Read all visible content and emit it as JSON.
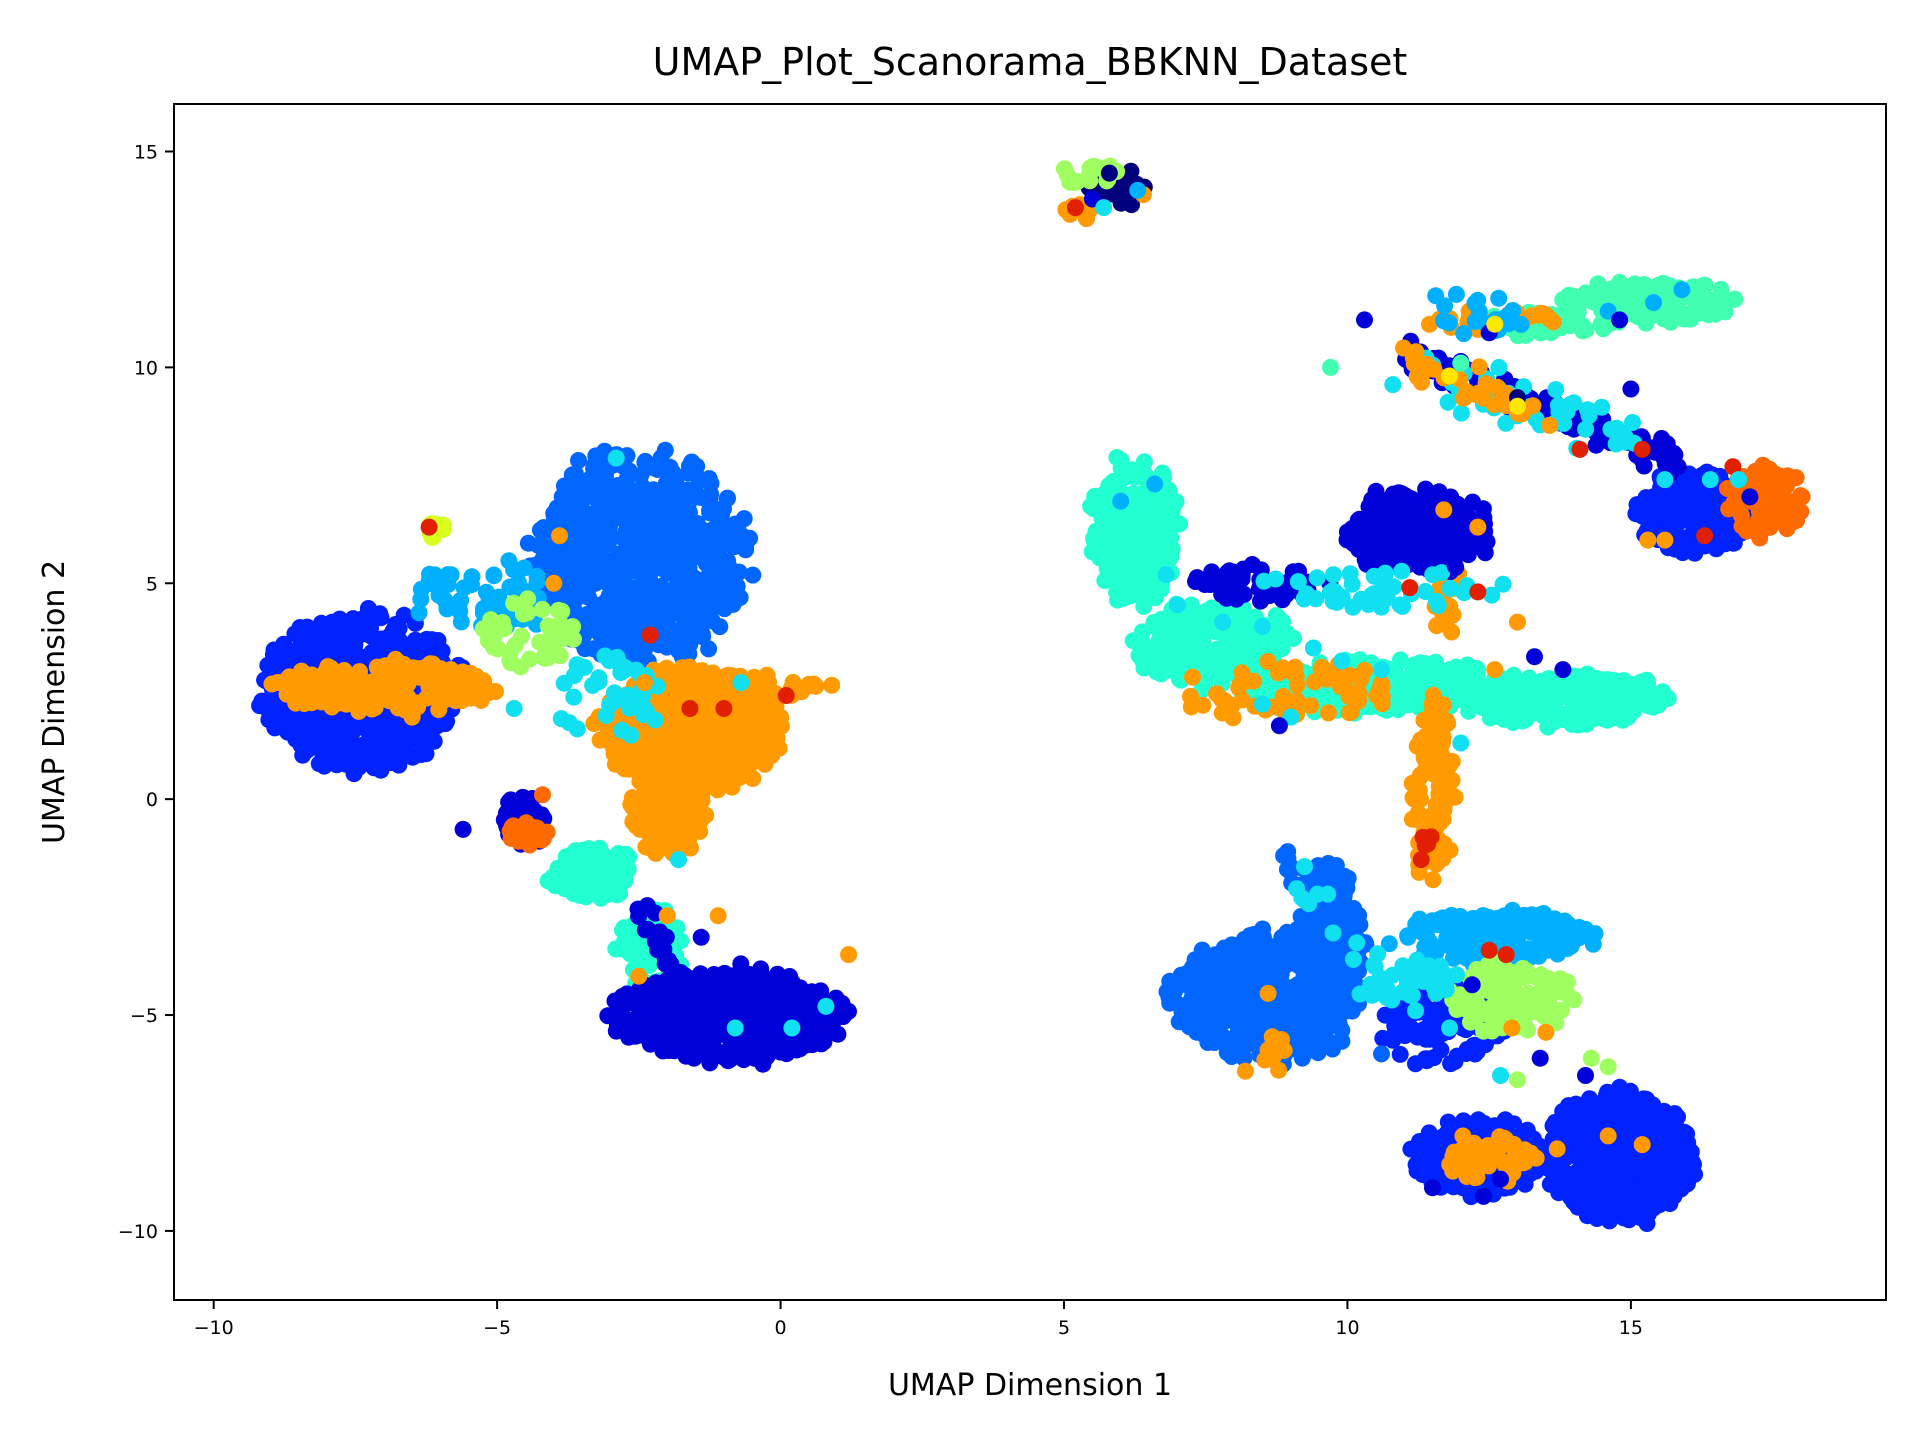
{
  "chart_data": {
    "type": "scatter",
    "title": "UMAP_Plot_Scanorama_BBKNN_Dataset",
    "xlabel": "UMAP Dimension 1",
    "ylabel": "UMAP Dimension 2",
    "xlim": [
      -10.7,
      19.5
    ],
    "ylim": [
      -11.6,
      16.1
    ],
    "xticks": [
      -10,
      -5,
      0,
      5,
      10,
      15
    ],
    "yticks": [
      -10,
      -5,
      0,
      5,
      10,
      15
    ],
    "xtick_labels": [
      "−10",
      "−5",
      "0",
      "5",
      "10",
      "15"
    ],
    "ytick_labels": [
      "−10",
      "−5",
      "0",
      "5",
      "10",
      "15"
    ],
    "grid": false,
    "legend": "none",
    "colormap": "jet",
    "colors": {
      "navy": "#00007f",
      "dark_blue": "#0000d8",
      "blue": "#0022ff",
      "azure": "#0066ff",
      "sky": "#00b0ff",
      "cyan": "#10e0f0",
      "aquamarine": "#22ffd0",
      "mint": "#40ffb0",
      "lime": "#a0ff60",
      "yellow_green": "#d8ff20",
      "yellow": "#ffe600",
      "orange": "#ff9a00",
      "dark_orange": "#ff6a00",
      "red": "#e02000",
      "dark_red": "#b00000"
    },
    "clusters": [
      {
        "cx": -7.4,
        "cy": 2.5,
        "rx": 1.7,
        "ry": 1.8,
        "color": "blue",
        "n": 700
      },
      {
        "cx": -2.5,
        "cy": 5.6,
        "rx": 1.9,
        "ry": 2.4,
        "color": "azure",
        "n": 750
      },
      {
        "cx": -1.6,
        "cy": 1.6,
        "rx": 1.6,
        "ry": 1.4,
        "color": "orange",
        "n": 550
      },
      {
        "cx": -2.0,
        "cy": -0.2,
        "rx": 0.7,
        "ry": 1.2,
        "color": "orange",
        "n": 150
      },
      {
        "cx": -7.0,
        "cy": 2.6,
        "rx": 2.0,
        "ry": 0.6,
        "color": "orange",
        "n": 160
      },
      {
        "cx": -1.0,
        "cy": 2.6,
        "rx": 1.9,
        "ry": 0.3,
        "color": "orange",
        "n": 80
      },
      {
        "cx": -5.2,
        "cy": 4.7,
        "rx": 1.2,
        "ry": 0.9,
        "color": "sky",
        "n": 60
      },
      {
        "cx": -4.4,
        "cy": 3.8,
        "rx": 0.9,
        "ry": 0.8,
        "color": "lime",
        "n": 40
      },
      {
        "cx": -3.3,
        "cy": -1.7,
        "rx": 0.8,
        "ry": 0.6,
        "color": "aquamarine",
        "n": 110
      },
      {
        "cx": -2.3,
        "cy": -3.4,
        "rx": 0.6,
        "ry": 1.0,
        "color": "aquamarine",
        "n": 60
      },
      {
        "cx": -0.9,
        "cy": -5.0,
        "rx": 2.0,
        "ry": 1.1,
        "color": "dark_blue",
        "n": 500
      },
      {
        "cx": -3.1,
        "cy": 2.4,
        "rx": 1.0,
        "ry": 1.0,
        "color": "cyan",
        "n": 40
      },
      {
        "cx": -4.5,
        "cy": -0.5,
        "rx": 0.4,
        "ry": 0.6,
        "color": "dark_blue",
        "n": 40
      },
      {
        "cx": -4.5,
        "cy": -0.8,
        "rx": 0.4,
        "ry": 0.3,
        "color": "dark_orange",
        "n": 20
      },
      {
        "cx": -6.1,
        "cy": 6.2,
        "rx": 0.2,
        "ry": 0.2,
        "color": "yellow_green",
        "n": 8
      },
      {
        "cx": 5.9,
        "cy": 14.2,
        "rx": 0.6,
        "ry": 0.5,
        "color": "navy",
        "n": 20
      },
      {
        "cx": 5.5,
        "cy": 14.5,
        "rx": 0.5,
        "ry": 0.3,
        "color": "lime",
        "n": 20
      },
      {
        "cx": 5.3,
        "cy": 13.6,
        "rx": 0.3,
        "ry": 0.2,
        "color": "orange",
        "n": 12
      },
      {
        "cx": 6.2,
        "cy": 6.2,
        "rx": 0.8,
        "ry": 1.7,
        "color": "aquamarine",
        "n": 220
      },
      {
        "cx": 7.6,
        "cy": 3.6,
        "rx": 1.4,
        "ry": 1.0,
        "color": "aquamarine",
        "n": 220
      },
      {
        "cx": 10.5,
        "cy": 2.6,
        "rx": 2.6,
        "ry": 0.6,
        "color": "aquamarine",
        "n": 320
      },
      {
        "cx": 13.8,
        "cy": 2.3,
        "rx": 1.9,
        "ry": 0.6,
        "color": "aquamarine",
        "n": 250
      },
      {
        "cx": 8.8,
        "cy": 2.5,
        "rx": 2.0,
        "ry": 0.7,
        "color": "orange",
        "n": 60
      },
      {
        "cx": 11.5,
        "cy": 0.2,
        "rx": 0.4,
        "ry": 2.2,
        "color": "orange",
        "n": 90
      },
      {
        "cx": 11.7,
        "cy": 4.7,
        "rx": 0.3,
        "ry": 1.2,
        "color": "orange",
        "n": 30
      },
      {
        "cx": 11.2,
        "cy": 6.2,
        "rx": 1.3,
        "ry": 1.0,
        "color": "dark_blue",
        "n": 240
      },
      {
        "cx": 8.4,
        "cy": 5.0,
        "rx": 1.2,
        "ry": 0.5,
        "color": "dark_blue",
        "n": 50
      },
      {
        "cx": 10.5,
        "cy": 4.9,
        "rx": 2.2,
        "ry": 0.5,
        "color": "cyan",
        "n": 45
      },
      {
        "cx": 16.1,
        "cy": 6.6,
        "rx": 1.0,
        "ry": 1.0,
        "color": "blue",
        "n": 160
      },
      {
        "cx": 17.4,
        "cy": 6.9,
        "rx": 0.7,
        "ry": 0.8,
        "color": "dark_orange",
        "n": 90
      },
      {
        "cx": 15.3,
        "cy": 11.5,
        "rx": 1.6,
        "ry": 0.5,
        "color": "mint",
        "n": 130
      },
      {
        "cx": 13.3,
        "cy": 11.0,
        "rx": 1.2,
        "ry": 0.3,
        "color": "mint",
        "n": 45
      },
      {
        "cx": 12.5,
        "cy": 11.1,
        "rx": 1.2,
        "ry": 0.25,
        "color": "orange",
        "n": 30
      },
      {
        "cx": 11.4,
        "cy": -0.9,
        "rx": 0.1,
        "ry": 0.2,
        "color": "red",
        "n": 4
      },
      {
        "cx": 8.6,
        "cy": -4.6,
        "rx": 1.7,
        "ry": 1.5,
        "color": "azure",
        "n": 520
      },
      {
        "cx": 9.7,
        "cy": -3.0,
        "rx": 0.6,
        "ry": 1.6,
        "color": "azure",
        "n": 130
      },
      {
        "cx": 11.7,
        "cy": -5.2,
        "rx": 1.1,
        "ry": 1.0,
        "color": "blue",
        "n": 120
      },
      {
        "cx": 12.6,
        "cy": -3.2,
        "rx": 1.8,
        "ry": 0.6,
        "color": "sky",
        "n": 200
      },
      {
        "cx": 12.9,
        "cy": -4.6,
        "rx": 1.1,
        "ry": 0.8,
        "color": "lime",
        "n": 120
      },
      {
        "cx": 11.1,
        "cy": -4.2,
        "rx": 0.8,
        "ry": 0.5,
        "color": "cyan",
        "n": 40
      },
      {
        "cx": 14.8,
        "cy": -8.3,
        "rx": 1.3,
        "ry": 1.5,
        "color": "blue",
        "n": 520
      },
      {
        "cx": 12.3,
        "cy": -8.3,
        "rx": 1.2,
        "ry": 0.9,
        "color": "blue",
        "n": 240
      },
      {
        "cx": 12.5,
        "cy": -8.3,
        "rx": 0.8,
        "ry": 0.6,
        "color": "orange",
        "n": 60
      },
      {
        "cx": 8.6,
        "cy": -5.9,
        "rx": 0.4,
        "ry": 0.4,
        "color": "orange",
        "n": 12
      }
    ],
    "streaks": [
      {
        "x1": 11.0,
        "y1": 10.3,
        "x2": 15.8,
        "y2": 7.8,
        "color": "dark_blue",
        "n": 130,
        "spread": 0.18
      },
      {
        "x1": 11.5,
        "y1": 9.8,
        "x2": 15.0,
        "y2": 8.5,
        "color": "cyan",
        "n": 50,
        "spread": 0.25
      },
      {
        "x1": 11.0,
        "y1": 10.2,
        "x2": 13.5,
        "y2": 9.0,
        "color": "orange",
        "n": 30,
        "spread": 0.2
      },
      {
        "x1": 11.5,
        "y1": 11.5,
        "x2": 13.0,
        "y2": 11.0,
        "color": "sky",
        "n": 25,
        "spread": 0.2
      },
      {
        "x1": 8.8,
        "y1": -1.2,
        "x2": 10.2,
        "y2": -3.5,
        "color": "azure",
        "n": 40,
        "spread": 0.2
      },
      {
        "x1": 9.0,
        "y1": -1.5,
        "x2": 10.5,
        "y2": -4.5,
        "color": "cyan",
        "n": 15,
        "spread": 0.3
      },
      {
        "x1": -2.5,
        "y1": -2.5,
        "x2": -1.5,
        "y2": -4.8,
        "color": "dark_blue",
        "n": 30,
        "spread": 0.25
      }
    ],
    "extra_points": [
      [
        -2.9,
        7.9,
        "cyan"
      ],
      [
        -4.0,
        5.0,
        "orange"
      ],
      [
        -3.9,
        6.1,
        "orange"
      ],
      [
        -2.3,
        3.8,
        "red"
      ],
      [
        -1.6,
        2.1,
        "red"
      ],
      [
        -1.0,
        2.1,
        "red"
      ],
      [
        0.1,
        2.4,
        "red"
      ],
      [
        -6.2,
        6.3,
        "red"
      ],
      [
        -4.2,
        0.1,
        "dark_orange"
      ],
      [
        -2.4,
        2.7,
        "orange"
      ],
      [
        -2.0,
        -2.7,
        "orange"
      ],
      [
        -1.1,
        -2.7,
        "orange"
      ],
      [
        1.2,
        -3.6,
        "orange"
      ],
      [
        -4.7,
        2.1,
        "cyan"
      ],
      [
        -0.8,
        -5.3,
        "cyan"
      ],
      [
        0.2,
        -5.3,
        "cyan"
      ],
      [
        0.8,
        -4.8,
        "cyan"
      ],
      [
        -2.5,
        -4.1,
        "orange"
      ],
      [
        -1.8,
        -1.4,
        "cyan"
      ],
      [
        -1.4,
        -3.2,
        "dark_blue"
      ],
      [
        -0.7,
        2.7,
        "cyan"
      ],
      [
        -5.6,
        -0.7,
        "dark_blue"
      ],
      [
        -6.5,
        1.9,
        "orange"
      ],
      [
        -3.4,
        -1.6,
        "aquamarine"
      ],
      [
        5.8,
        14.5,
        "navy"
      ],
      [
        6.0,
        14.1,
        "navy"
      ],
      [
        6.2,
        14.0,
        "navy"
      ],
      [
        5.5,
        13.9,
        "dark_blue"
      ],
      [
        5.2,
        13.7,
        "red"
      ],
      [
        6.4,
        14.0,
        "orange"
      ],
      [
        5.7,
        13.7,
        "cyan"
      ],
      [
        6.3,
        14.1,
        "sky"
      ],
      [
        10.3,
        11.1,
        "dark_blue"
      ],
      [
        12.5,
        10.8,
        "dark_blue"
      ],
      [
        13.0,
        9.3,
        "navy"
      ],
      [
        15.0,
        9.5,
        "dark_blue"
      ],
      [
        14.6,
        11.3,
        "sky"
      ],
      [
        15.9,
        11.8,
        "sky"
      ],
      [
        15.4,
        11.5,
        "sky"
      ],
      [
        14.8,
        11.1,
        "dark_blue"
      ],
      [
        12.0,
        10.1,
        "mint"
      ],
      [
        9.7,
        10.0,
        "mint"
      ],
      [
        10.8,
        9.6,
        "cyan"
      ],
      [
        12.6,
        11.0,
        "yellow"
      ],
      [
        11.8,
        9.8,
        "yellow"
      ],
      [
        13.0,
        9.1,
        "yellow"
      ],
      [
        15.3,
        6.0,
        "orange"
      ],
      [
        15.6,
        6.0,
        "orange"
      ],
      [
        16.3,
        6.1,
        "red"
      ],
      [
        15.2,
        8.1,
        "red"
      ],
      [
        16.8,
        7.7,
        "red"
      ],
      [
        14.1,
        8.1,
        "red"
      ],
      [
        15.6,
        7.4,
        "cyan"
      ],
      [
        16.4,
        7.4,
        "cyan"
      ],
      [
        17.1,
        7.0,
        "dark_blue"
      ],
      [
        16.9,
        7.4,
        "cyan"
      ],
      [
        6.0,
        6.9,
        "sky"
      ],
      [
        6.6,
        7.3,
        "sky"
      ],
      [
        6.8,
        5.2,
        "cyan"
      ],
      [
        7.0,
        4.5,
        "cyan"
      ],
      [
        7.8,
        4.1,
        "cyan"
      ],
      [
        8.5,
        4.0,
        "cyan"
      ],
      [
        9.4,
        3.5,
        "cyan"
      ],
      [
        9.9,
        3.2,
        "cyan"
      ],
      [
        10.6,
        3.0,
        "cyan"
      ],
      [
        8.5,
        2.2,
        "cyan"
      ],
      [
        9.0,
        1.9,
        "cyan"
      ],
      [
        12.0,
        1.3,
        "cyan"
      ],
      [
        11.9,
        5.4,
        "dark_blue"
      ],
      [
        12.3,
        6.3,
        "orange"
      ],
      [
        11.7,
        6.7,
        "orange"
      ],
      [
        13.0,
        4.1,
        "orange"
      ],
      [
        12.6,
        3.0,
        "orange"
      ],
      [
        13.3,
        3.3,
        "dark_blue"
      ],
      [
        13.8,
        3.0,
        "dark_blue"
      ],
      [
        8.8,
        1.7,
        "dark_blue"
      ],
      [
        11.3,
        -1.4,
        "red"
      ],
      [
        11.1,
        4.9,
        "red"
      ],
      [
        12.3,
        4.8,
        "red"
      ],
      [
        10.8,
        6.8,
        "dark_blue"
      ],
      [
        8.6,
        -4.5,
        "orange"
      ],
      [
        8.2,
        -6.3,
        "orange"
      ],
      [
        9.0,
        -3.3,
        "azure"
      ],
      [
        9.2,
        -3.4,
        "azure"
      ],
      [
        10.6,
        -5.9,
        "azure"
      ],
      [
        12.5,
        -3.5,
        "red"
      ],
      [
        12.8,
        -3.6,
        "red"
      ],
      [
        12.2,
        -4.3,
        "dark_blue"
      ],
      [
        13.4,
        -6.0,
        "dark_blue"
      ],
      [
        14.2,
        -6.4,
        "dark_blue"
      ],
      [
        12.9,
        -5.3,
        "orange"
      ],
      [
        13.5,
        -5.4,
        "orange"
      ],
      [
        14.3,
        -6.0,
        "lime"
      ],
      [
        14.6,
        -6.2,
        "lime"
      ],
      [
        13.0,
        -6.5,
        "lime"
      ],
      [
        12.4,
        -9.2,
        "dark_blue"
      ],
      [
        11.5,
        -9.0,
        "dark_blue"
      ],
      [
        12.7,
        -8.8,
        "dark_blue"
      ],
      [
        15.2,
        -8.0,
        "orange"
      ],
      [
        14.6,
        -7.8,
        "orange"
      ],
      [
        13.7,
        -8.1,
        "orange"
      ],
      [
        12.7,
        -6.4,
        "cyan"
      ],
      [
        11.8,
        -5.3,
        "cyan"
      ],
      [
        11.2,
        -4.9,
        "cyan"
      ]
    ]
  }
}
